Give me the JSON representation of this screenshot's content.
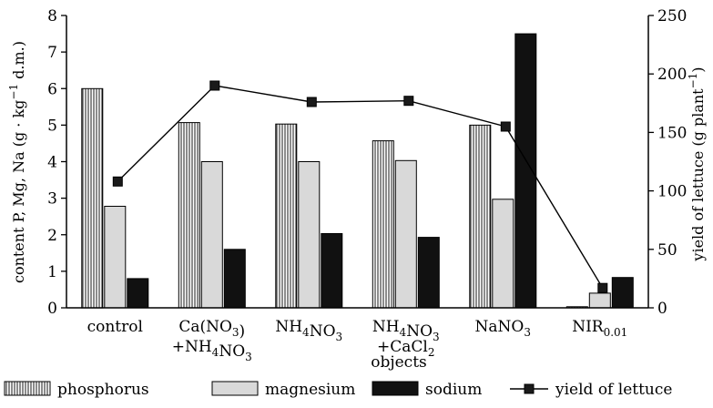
{
  "chart_data": {
    "type": "bar",
    "categories": [
      {
        "line1": "control",
        "line2": ""
      },
      {
        "line1": "Ca(NO3)",
        "line2": "+NH4NO3"
      },
      {
        "line1": "NH4NO3",
        "line2": ""
      },
      {
        "line1": "NH4NO3",
        "line2": "+CaCl2"
      },
      {
        "line1": "NaNO3",
        "line2": ""
      },
      {
        "line1": "NIR0.01",
        "line2": ""
      }
    ],
    "series": [
      {
        "name": "phosphorus",
        "kind": "bar",
        "axis": "left",
        "fill": "#ffffff",
        "pattern": "vertical-lines",
        "values": [
          6.0,
          5.07,
          5.03,
          4.57,
          5.0,
          0.03
        ]
      },
      {
        "name": "magnesium",
        "kind": "bar",
        "axis": "left",
        "fill": "#d9d9d9",
        "values": [
          2.78,
          4.0,
          4.0,
          4.03,
          2.97,
          0.4
        ]
      },
      {
        "name": "sodium",
        "kind": "bar",
        "axis": "left",
        "fill": "#111111",
        "values": [
          0.8,
          1.6,
          2.03,
          1.93,
          7.5,
          0.83
        ]
      },
      {
        "name": "yield of lettuce",
        "kind": "line",
        "axis": "right",
        "color": "#000000",
        "values": [
          108,
          190,
          176,
          177,
          155,
          17
        ]
      }
    ],
    "x_title": "objects",
    "y_left": {
      "label": "content P, Mg, Na (g · kg−1 d.m.)",
      "min": 0,
      "max": 8,
      "step": 1
    },
    "y_right": {
      "label": "yield of lettuce (g plant−1)",
      "min": 0,
      "max": 250,
      "step": 50
    },
    "legend": {
      "position": "bottom",
      "items": [
        "phosphorus",
        "magnesium",
        "sodium",
        "yield of lettuce"
      ]
    },
    "grid": false
  }
}
